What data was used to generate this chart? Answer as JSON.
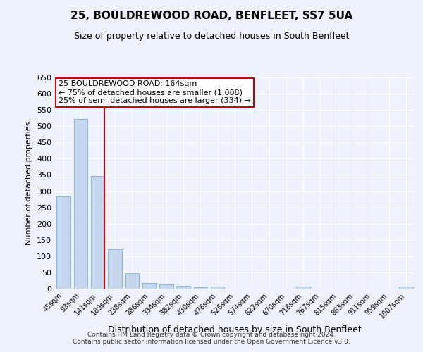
{
  "title": "25, BOULDREWOOD ROAD, BENFLEET, SS7 5UA",
  "subtitle": "Size of property relative to detached houses in South Benfleet",
  "xlabel": "Distribution of detached houses by size in South Benfleet",
  "ylabel": "Number of detached properties",
  "bar_labels": [
    "45sqm",
    "93sqm",
    "141sqm",
    "189sqm",
    "238sqm",
    "286sqm",
    "334sqm",
    "382sqm",
    "430sqm",
    "478sqm",
    "526sqm",
    "574sqm",
    "622sqm",
    "670sqm",
    "718sqm",
    "767sqm",
    "815sqm",
    "863sqm",
    "911sqm",
    "959sqm",
    "1007sqm"
  ],
  "bar_values": [
    283,
    523,
    347,
    122,
    48,
    18,
    12,
    9,
    5,
    6,
    0,
    0,
    0,
    0,
    6,
    0,
    0,
    0,
    0,
    0,
    6
  ],
  "bar_color": "#c5d8ef",
  "bar_edgecolor": "#7aadd4",
  "vline_color": "#cc0000",
  "annotation_text": "25 BOULDREWOOD ROAD: 164sqm\n← 75% of detached houses are smaller (1,008)\n25% of semi-detached houses are larger (334) →",
  "annotation_box_facecolor": "#ffffff",
  "annotation_box_edgecolor": "#cc0000",
  "ylim": [
    0,
    650
  ],
  "yticks": [
    0,
    50,
    100,
    150,
    200,
    250,
    300,
    350,
    400,
    450,
    500,
    550,
    600,
    650
  ],
  "footer_line1": "Contains HM Land Registry data © Crown copyright and database right 2024.",
  "footer_line2": "Contains public sector information licensed under the Open Government Licence v3.0.",
  "bg_color": "#eef2fc",
  "grid_color": "#ffffff",
  "title_fontsize": 11,
  "subtitle_fontsize": 9,
  "xlabel_fontsize": 9,
  "ylabel_fontsize": 8,
  "tick_fontsize": 8,
  "xtick_fontsize": 7,
  "footer_fontsize": 6.5,
  "annotation_fontsize": 8
}
